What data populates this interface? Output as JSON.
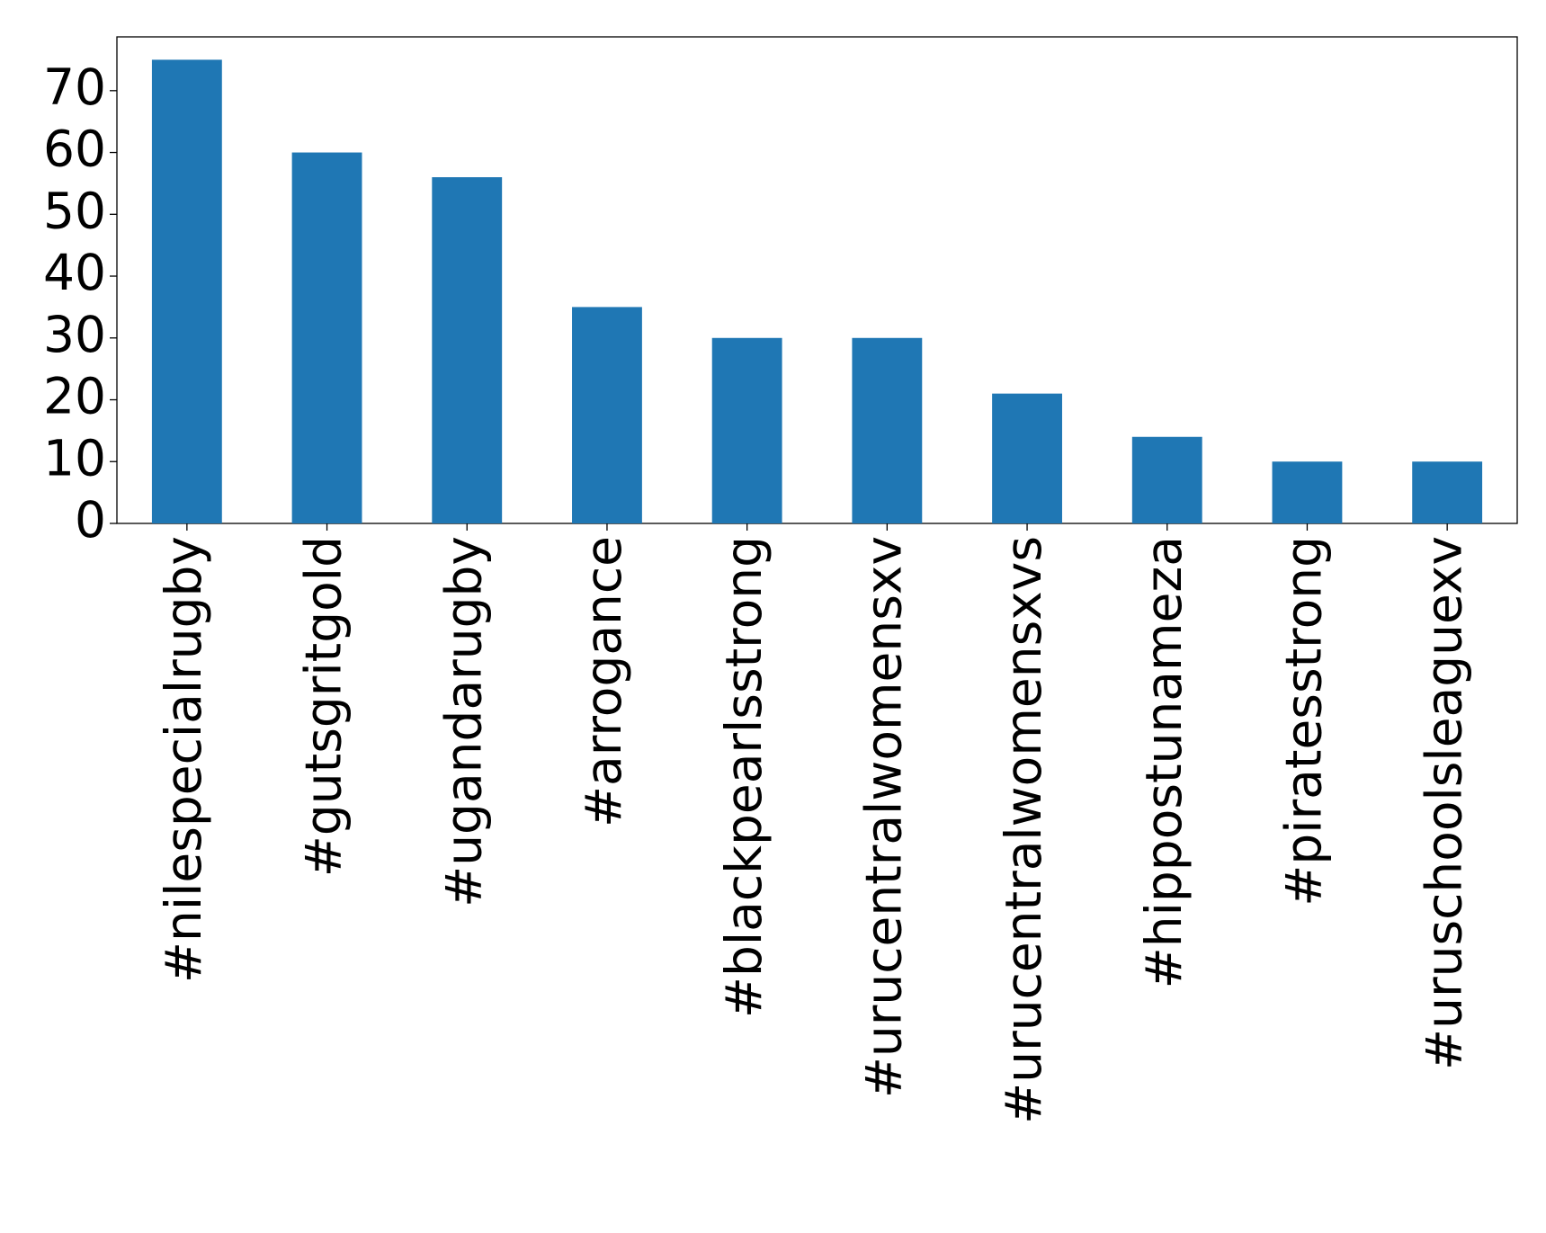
{
  "chart_data": {
    "type": "bar",
    "categories": [
      "#nilespecialrugby",
      "#gutsgritgold",
      "#ugandarugby",
      "#arrogance",
      "#blackpearlsstrong",
      "#urucentralwomensxv",
      "#urucentralwomensxvs",
      "#hippostunameza",
      "#piratesstrong",
      "#uruschoolsleaguexv"
    ],
    "values": [
      75,
      60,
      56,
      35,
      30,
      30,
      21,
      14,
      10,
      10
    ],
    "color": "#1f77b4",
    "ylim": [
      0,
      78.7
    ],
    "yticks": [
      0,
      10,
      20,
      30,
      40,
      50,
      60,
      70
    ],
    "grid": false
  }
}
